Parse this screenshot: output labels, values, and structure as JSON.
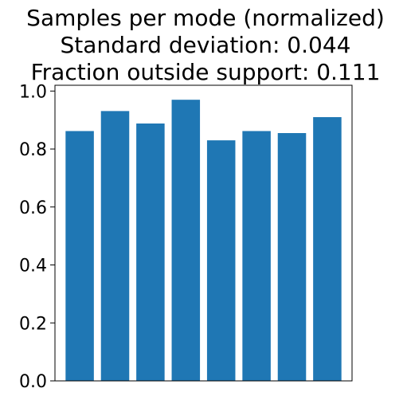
{
  "chart_data": {
    "type": "bar",
    "title": [
      "Samples per mode (normalized)",
      "Standard deviation: 0.044",
      "Fraction outside support: 0.111"
    ],
    "categories": [
      "",
      "",
      "",
      "",
      "",
      "",
      "",
      ""
    ],
    "values": [
      0.862,
      0.931,
      0.888,
      0.97,
      0.83,
      0.862,
      0.855,
      0.91
    ],
    "xlabel": "",
    "ylabel": "",
    "ylim": [
      0,
      1.02
    ],
    "yticks": [
      "0.0",
      "0.2",
      "0.4",
      "0.6",
      "0.8",
      "1.0"
    ],
    "show_xticks": false,
    "grid": false,
    "legend": "none",
    "bar_color": "#1f77b4",
    "axis_color": "#000000"
  }
}
